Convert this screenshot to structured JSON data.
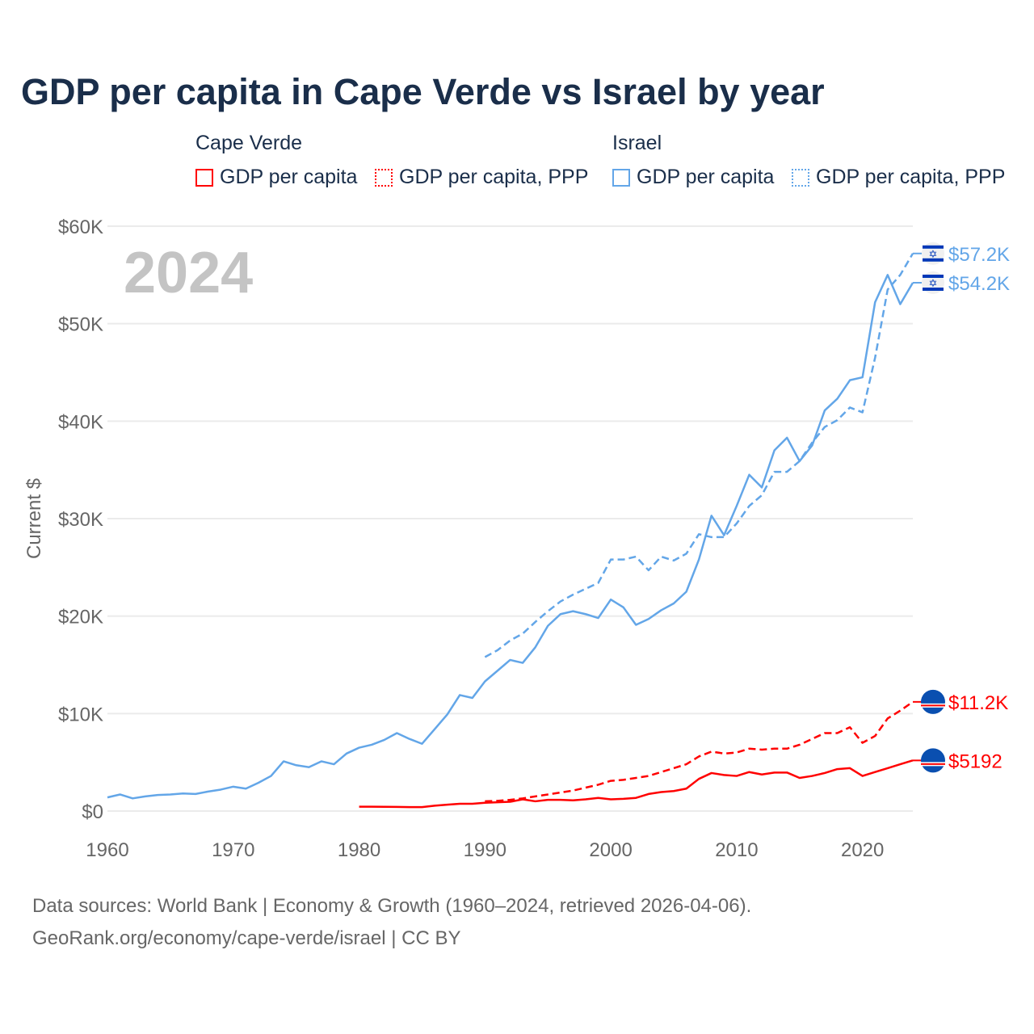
{
  "title": "GDP per capita in Cape Verde vs Israel by year",
  "legend": {
    "groups": [
      {
        "name": "Cape Verde",
        "color": "#ff0000"
      },
      {
        "name": "Israel",
        "color": "#63a6e8"
      }
    ],
    "items": [
      "GDP per capita",
      "GDP per capita, PPP",
      "GDP per capita",
      "GDP per capita, PPP"
    ]
  },
  "year_label": "2024",
  "footer": {
    "line1": "Data sources: World Bank | Economy & Growth (1960–2024, retrieved 2026-04-06).",
    "line2": "GeoRank.org/economy/cape-verde/israel | CC BY"
  },
  "chart_data": {
    "type": "line",
    "title": "GDP per capita in Cape Verde vs Israel by year",
    "xlabel": "",
    "ylabel": "Current $",
    "xlim": [
      1960,
      2024
    ],
    "ylim": [
      0,
      60000
    ],
    "xticks": [
      "1960",
      "1970",
      "1980",
      "1990",
      "2000",
      "2010",
      "2020"
    ],
    "yticks": [
      "$0",
      "$10K",
      "$20K",
      "$30K",
      "$40K",
      "$50K",
      "$60K"
    ],
    "grid": true,
    "legend_position": "top",
    "series": [
      {
        "name": "Israel GDP per capita",
        "country": "Israel",
        "dashed": false,
        "color": "#63a6e8",
        "start": 1960,
        "end_label": "$54.2K",
        "values": [
          1400,
          1700,
          1300,
          1500,
          1650,
          1700,
          1800,
          1750,
          2000,
          2200,
          2500,
          2300,
          2900,
          3600,
          5100,
          4700,
          4500,
          5100,
          4800,
          5900,
          6500,
          6800,
          7300,
          8000,
          7400,
          6900,
          8400,
          9900,
          11900,
          11600,
          13300,
          14400,
          15500,
          15200,
          16800,
          19000,
          20200,
          20500,
          20200,
          19800,
          21700,
          20900,
          19100,
          19700,
          20600,
          21300,
          22500,
          25800,
          30300,
          28300,
          31300,
          34500,
          33200,
          37000,
          38300,
          35900,
          37500,
          41100,
          42300,
          44200,
          44500,
          52200,
          55000,
          52000,
          54200
        ]
      },
      {
        "name": "Israel GDP per capita, PPP",
        "country": "Israel",
        "dashed": true,
        "color": "#63a6e8",
        "start": 1990,
        "end_label": "$57.2K",
        "values": [
          15800,
          16500,
          17500,
          18200,
          19400,
          20500,
          21500,
          22200,
          22800,
          23400,
          25800,
          25800,
          26100,
          24700,
          26100,
          25700,
          26400,
          28400,
          28100,
          28100,
          29500,
          31300,
          32400,
          34800,
          34800,
          35900,
          37800,
          39400,
          40100,
          41400,
          40900,
          46500,
          53500,
          55000,
          57200
        ]
      },
      {
        "name": "Cape Verde GDP per capita",
        "country": "Cape Verde",
        "dashed": false,
        "color": "#ff0000",
        "start": 1980,
        "end_label": "$5192",
        "values": [
          450,
          450,
          430,
          420,
          400,
          400,
          550,
          650,
          750,
          750,
          850,
          900,
          950,
          1200,
          1000,
          1150,
          1150,
          1100,
          1200,
          1350,
          1200,
          1250,
          1350,
          1750,
          1950,
          2050,
          2300,
          3300,
          3900,
          3700,
          3600,
          4000,
          3750,
          3950,
          3950,
          3400,
          3600,
          3900,
          4300,
          4400,
          3600,
          4000,
          4400,
          4800,
          5192
        ]
      },
      {
        "name": "Cape Verde GDP per capita, PPP",
        "country": "Cape Verde",
        "dashed": true,
        "color": "#ff0000",
        "start": 1990,
        "end_label": "$11.2K",
        "values": [
          1000,
          1050,
          1150,
          1300,
          1500,
          1700,
          1900,
          2100,
          2400,
          2700,
          3100,
          3200,
          3400,
          3600,
          4000,
          4400,
          4800,
          5600,
          6100,
          5900,
          6000,
          6400,
          6300,
          6400,
          6400,
          6800,
          7400,
          8000,
          8000,
          8600,
          7000,
          7700,
          9500,
          10300,
          11200
        ]
      }
    ]
  }
}
